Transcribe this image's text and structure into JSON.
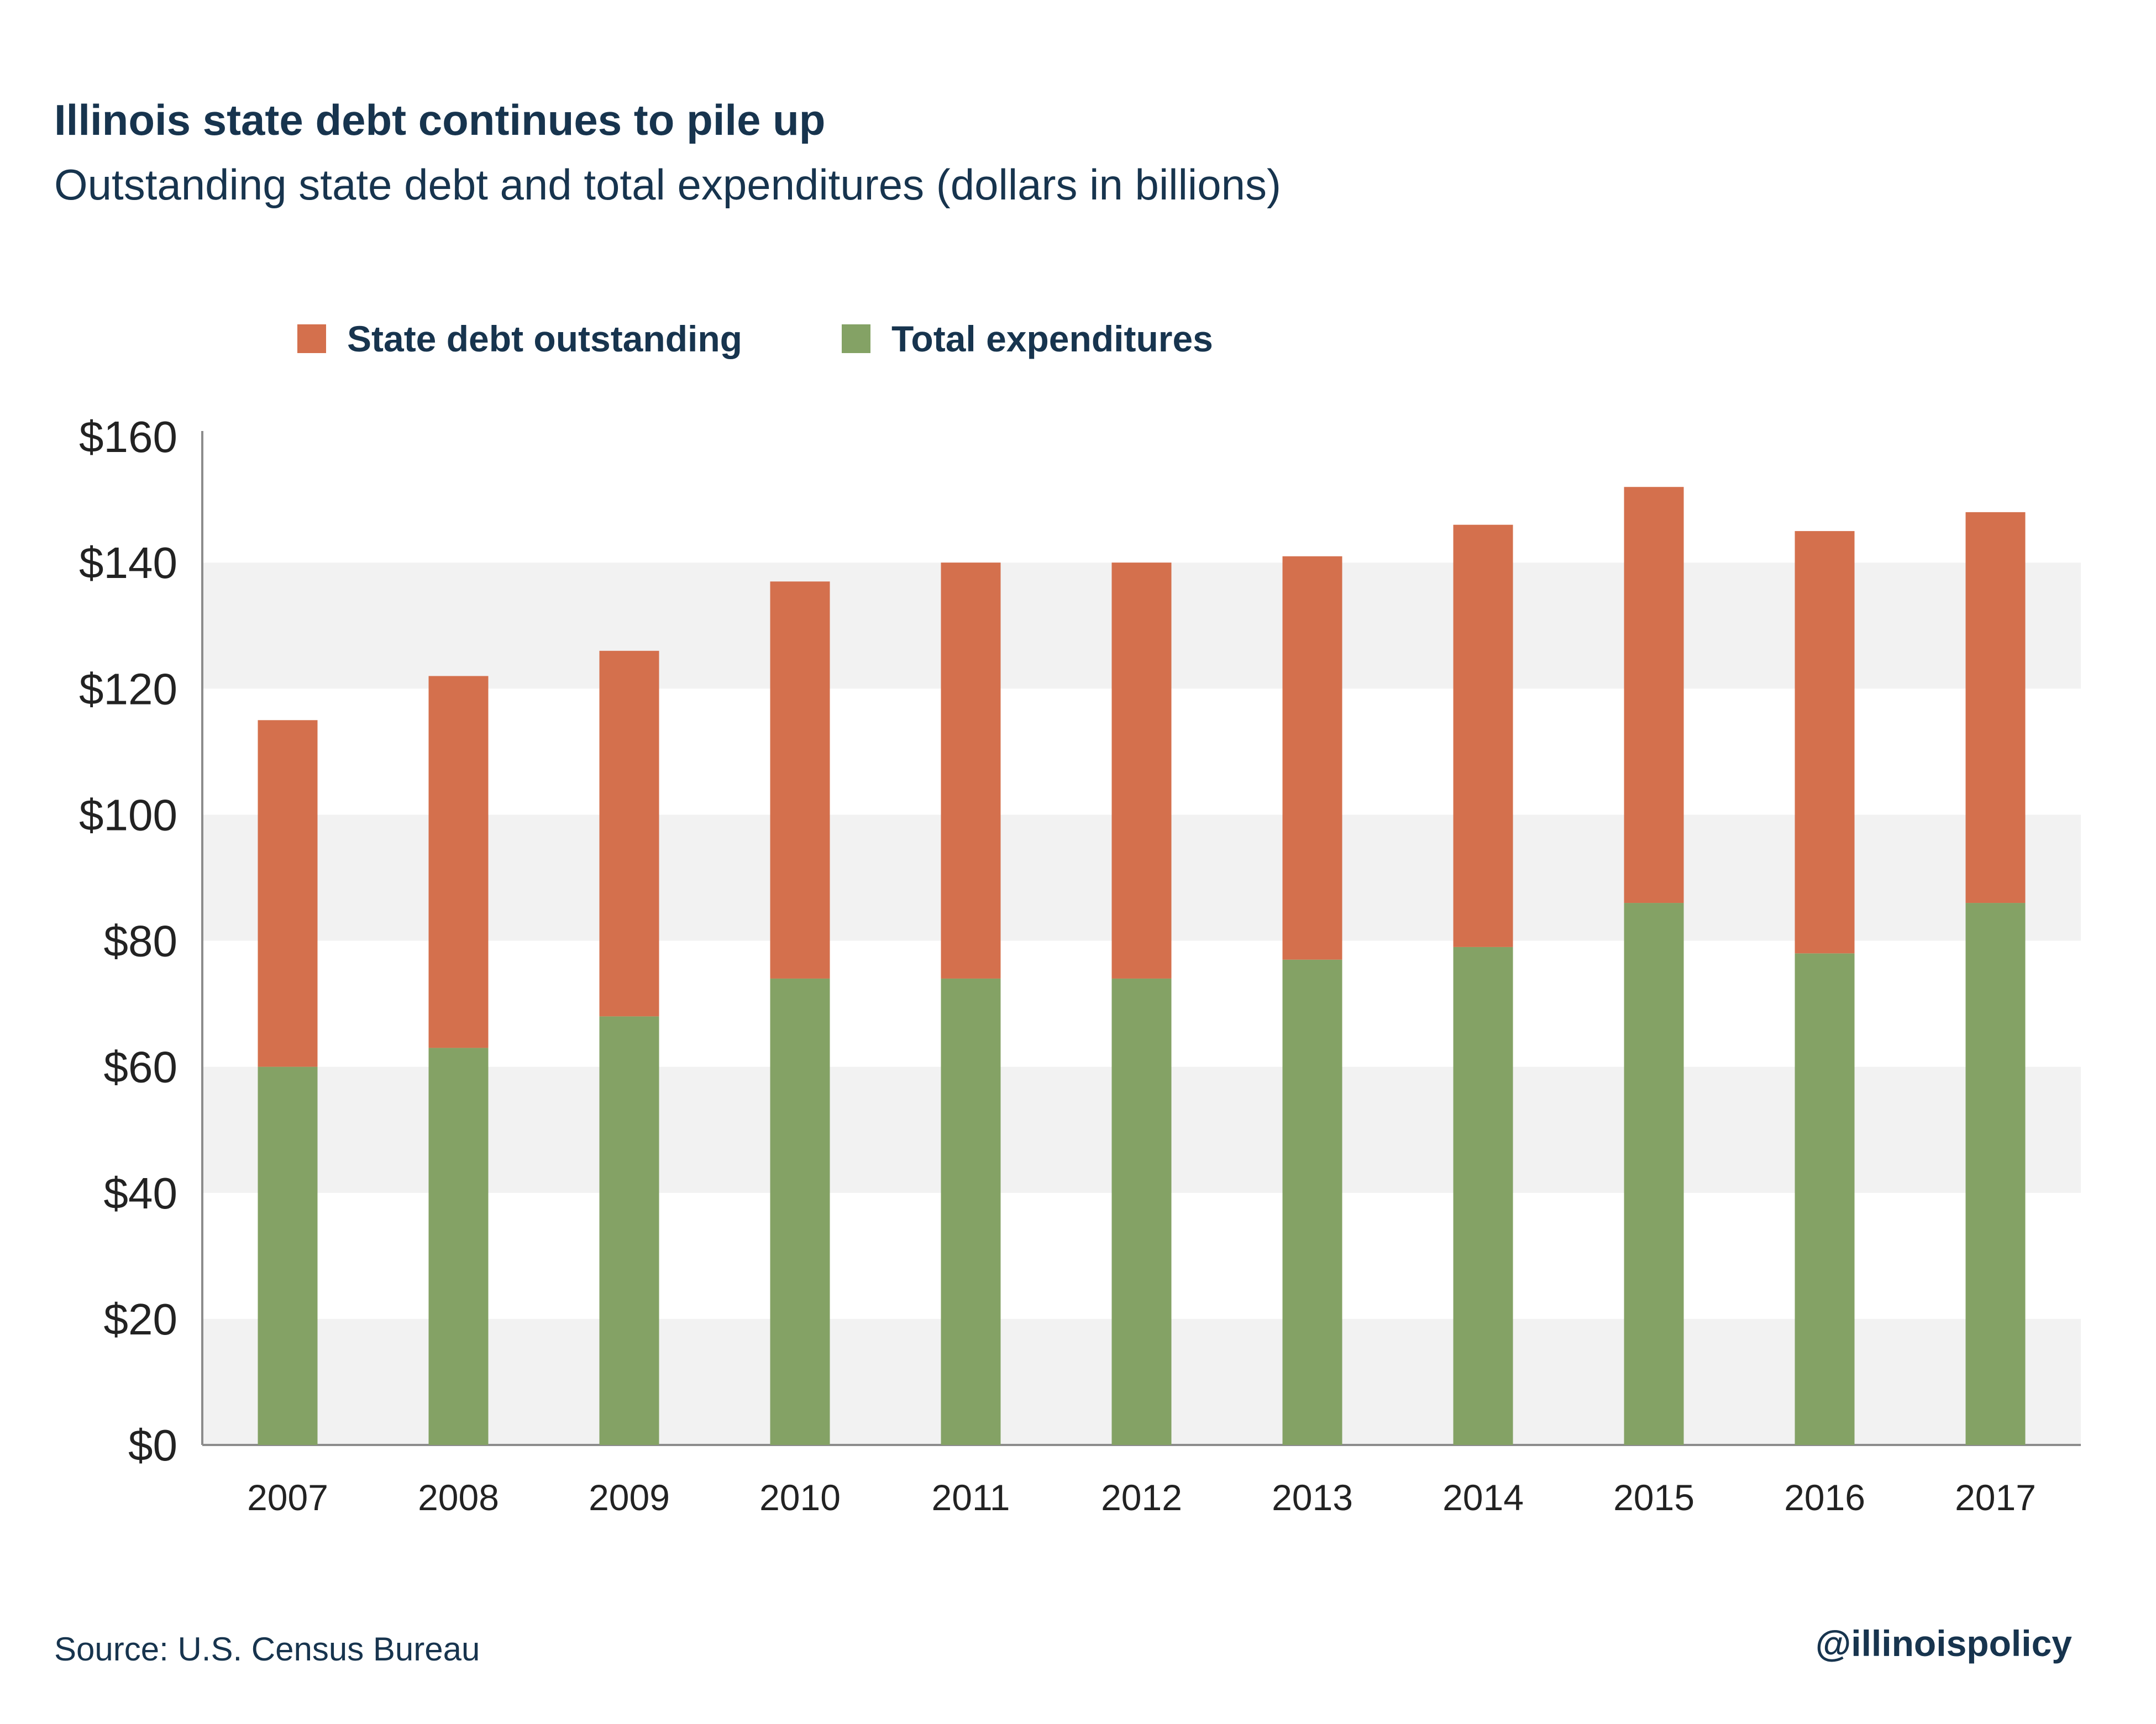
{
  "header": {
    "title": "Illinois state debt continues to pile up",
    "subtitle": "Outstanding state debt and total expenditures (dollars in billions)"
  },
  "footer": {
    "source": "Source:  U.S. Census Bureau",
    "handle": "@illinoispolicy"
  },
  "colors": {
    "text": "#17344e",
    "debt": "#d4704d",
    "expenditures": "#84a265",
    "band": "#f2f2f2",
    "axis": "#8c8c8c"
  },
  "chart_data": {
    "type": "bar",
    "stacked": true,
    "categories": [
      "2007",
      "2008",
      "2009",
      "2010",
      "2011",
      "2012",
      "2013",
      "2014",
      "2015",
      "2016",
      "2017"
    ],
    "series": [
      {
        "name": "Total expenditures",
        "values": [
          60,
          63,
          68,
          74,
          74,
          74,
          77,
          79,
          86,
          78,
          86
        ]
      },
      {
        "name": "State debt outstanding",
        "values": [
          55,
          59,
          58,
          63,
          66,
          66,
          64,
          67,
          66,
          67,
          62
        ]
      }
    ],
    "yticks": [
      0,
      20,
      40,
      60,
      80,
      100,
      120,
      140,
      160
    ],
    "ytick_labels": [
      "$0",
      "$20",
      "$40",
      "$60",
      "$80",
      "$100",
      "$120",
      "$140",
      "$160"
    ],
    "ylim": [
      0,
      160
    ],
    "xlabel": "",
    "ylabel": "",
    "legend_position": "top",
    "grid": "alternating horizontal bands"
  }
}
